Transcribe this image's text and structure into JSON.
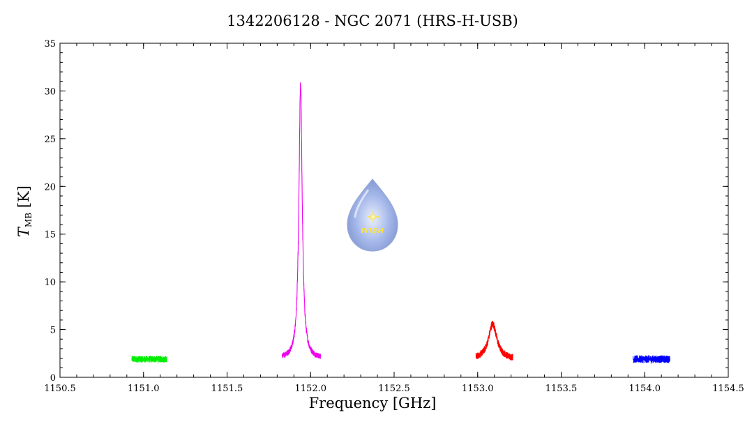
{
  "chart_data": {
    "type": "line",
    "title": "1342206128 - NGC 2071 (HRS-H-USB)",
    "xlabel": "Frequency [GHz]",
    "ylabel": {
      "symbol": "T",
      "subscript": "MB",
      "unit": "[K]"
    },
    "xlim": [
      1150.5,
      1154.5
    ],
    "ylim": [
      0,
      35
    ],
    "xticks": [
      1150.5,
      1151.0,
      1151.5,
      1152.0,
      1152.5,
      1153.0,
      1153.5,
      1154.0,
      1154.5
    ],
    "xtick_labels": [
      "1150.5",
      "1151.0",
      "1151.5",
      "1152.0",
      "1152.5",
      "1153.0",
      "1153.5",
      "1154.0",
      "1154.5"
    ],
    "yticks": [
      0,
      5,
      10,
      15,
      20,
      25,
      30,
      35
    ],
    "ytick_labels": [
      "0",
      "5",
      "10",
      "15",
      "20",
      "25",
      "30",
      "35"
    ],
    "series": [
      {
        "color": "#00ee00",
        "x_range": [
          1150.93,
          1151.14
        ],
        "baseline": 1.9,
        "noise": 0.35,
        "peak": null
      },
      {
        "color": "#ee00ee",
        "x_range": [
          1151.83,
          1152.06
        ],
        "baseline": 1.9,
        "noise": 0.3,
        "peak": {
          "x": 1151.94,
          "height": 28.5,
          "width": 0.012
        }
      },
      {
        "color": "#ff0000",
        "x_range": [
          1152.99,
          1153.21
        ],
        "baseline": 1.9,
        "noise": 0.35,
        "peak": {
          "x": 1153.09,
          "height": 3.7,
          "width": 0.03
        }
      },
      {
        "color": "#0000ff",
        "x_range": [
          1153.93,
          1154.15
        ],
        "baseline": 1.9,
        "noise": 0.4,
        "peak": null
      }
    ],
    "logo": {
      "text": "WISH"
    }
  }
}
